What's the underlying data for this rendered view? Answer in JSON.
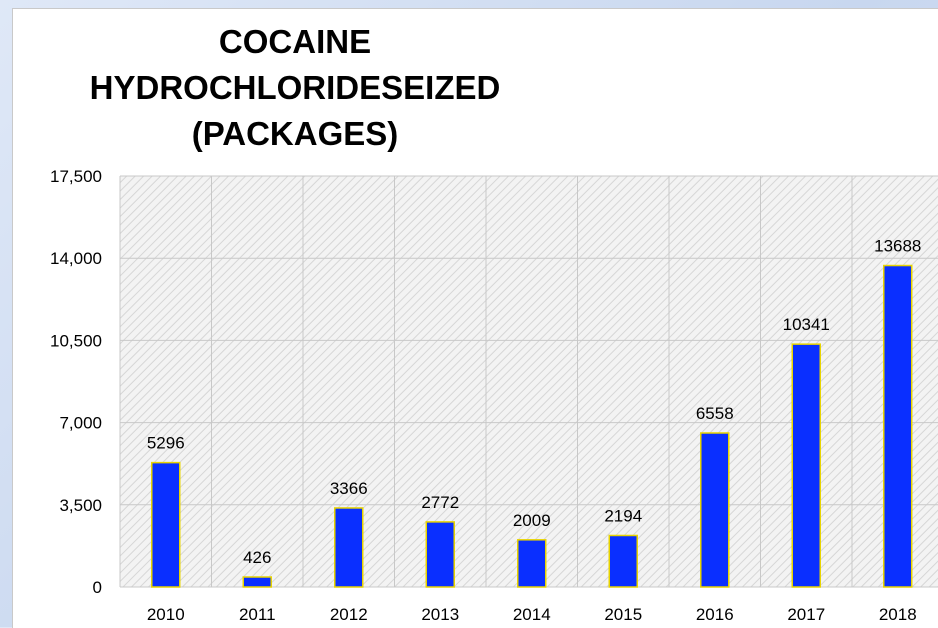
{
  "chart_data": {
    "type": "bar",
    "title_lines": [
      "COCAINE",
      "HYDROCHLORIDESEIZED",
      "(PACKAGES)"
    ],
    "categories": [
      "2010",
      "2011",
      "2012",
      "2013",
      "2014",
      "2015",
      "2016",
      "2017",
      "2018"
    ],
    "values": [
      5296,
      426,
      3366,
      2772,
      2009,
      2194,
      6558,
      10341,
      13688
    ],
    "data_labels": [
      "5296",
      "426",
      "3366",
      "2772",
      "2009",
      "2194",
      "6558",
      "10341",
      "13688"
    ],
    "y_ticks": [
      "0",
      "3,500",
      "7,000",
      "10,500",
      "14,000",
      "17,500"
    ],
    "ylim": [
      0,
      17500
    ],
    "y_tick_step": 3500,
    "grid": true,
    "legend": "none",
    "bar_color": "#0a2fff",
    "bar_outline_color": "#e8d400",
    "plot_background_color": "#f2f2f2",
    "grid_color": "#c8c8c8"
  }
}
